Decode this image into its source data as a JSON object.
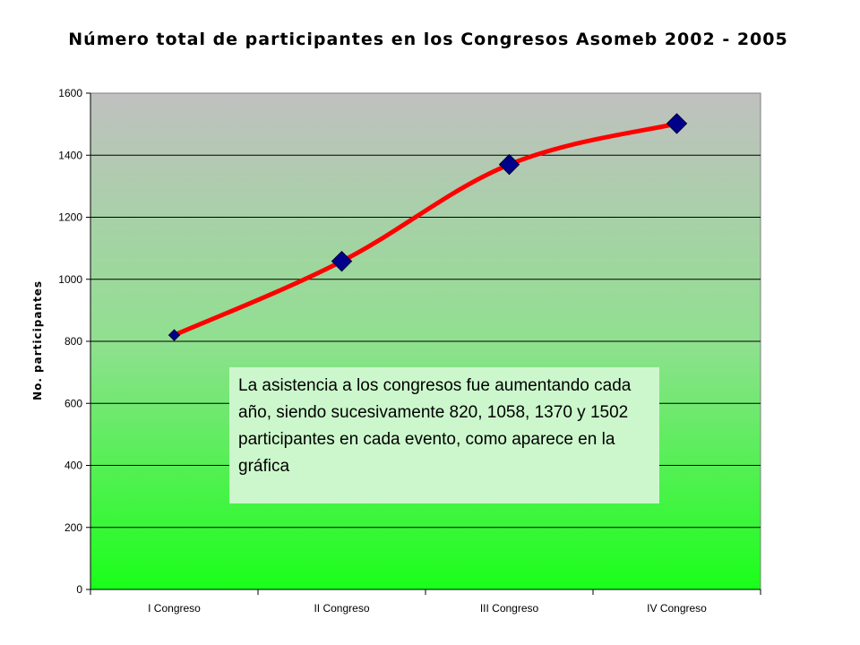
{
  "chart_data": {
    "type": "line",
    "title": "Número total de participantes en los Congresos Asomeb 2002 - 2005",
    "xlabel": "",
    "ylabel": "No. participantes",
    "categories": [
      "I Congreso",
      "II Congreso",
      "III Congreso",
      "IV Congreso"
    ],
    "series": [
      {
        "values": [
          820,
          1058,
          1370,
          1502
        ],
        "color": "#ff0000",
        "marker": "diamond",
        "marker_color": "#00008b"
      }
    ],
    "ylim": [
      0,
      1600
    ],
    "yticks": [
      0,
      200,
      400,
      600,
      800,
      1000,
      1200,
      1400,
      1600
    ],
    "grid": true,
    "plot_background": "gradient gray to green",
    "annotation": "La asistencia a los congresos fue aumentando cada año, siendo sucesivamente 820, 1058, 1370 y 1502 participantes en cada evento, como aparece en la gráfica"
  }
}
